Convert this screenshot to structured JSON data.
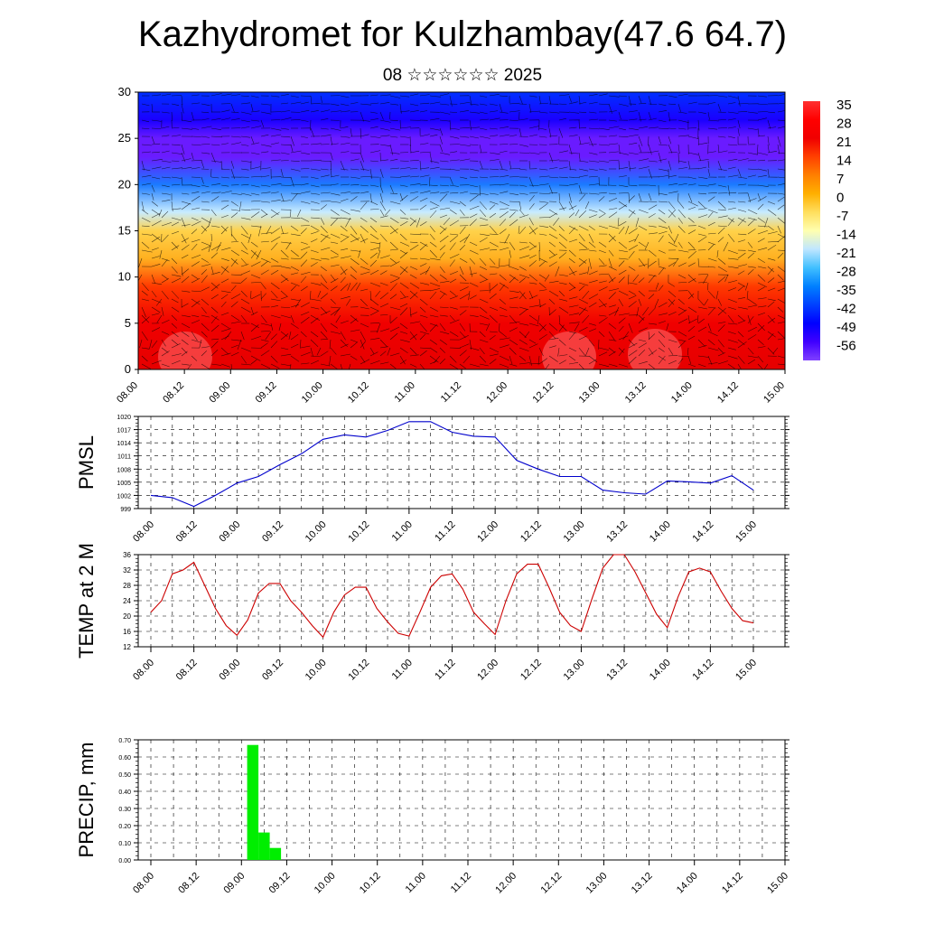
{
  "title": "Kazhydromet for Kulzhambay(47.6 64.7)",
  "subtitle": "08 ☆☆☆☆☆☆ 2025",
  "time_labels": [
    "08.00",
    "08.12",
    "09.00",
    "09.12",
    "10.00",
    "10.12",
    "11.00",
    "11.12",
    "12.00",
    "12.12",
    "13.00",
    "13.12",
    "14.00",
    "14.12",
    "15.00"
  ],
  "chart_data": [
    {
      "type": "heatmap",
      "yticks": [
        0,
        5,
        10,
        15,
        20,
        25,
        30
      ],
      "ylim": [
        0,
        30
      ],
      "colorbar": {
        "labels": [
          "35",
          "28",
          "21",
          "14",
          "7",
          "0",
          "-7",
          "-14",
          "-21",
          "-28",
          "-35",
          "-42",
          "-49",
          "-56"
        ],
        "colors": [
          "#ff3030",
          "#ff0000",
          "#f00000",
          "#ff4000",
          "#ff8000",
          "#ffb000",
          "#ffdf5f",
          "#ffffb0",
          "#bfe6ff",
          "#40bfff",
          "#0080ff",
          "#0040ff",
          "#0000ff",
          "#4000ff",
          "#8040ff"
        ]
      },
      "layers_temperature": [
        {
          "height": 0,
          "value": 32
        },
        {
          "height": 5,
          "value": 26
        },
        {
          "height": 9,
          "value": 14
        },
        {
          "height": 12,
          "value": 0
        },
        {
          "height": 15,
          "value": -10
        },
        {
          "height": 17,
          "value": -25
        },
        {
          "height": 20,
          "value": -42
        },
        {
          "height": 23,
          "value": -56
        },
        {
          "height": 25,
          "value": -60
        },
        {
          "height": 27,
          "value": -54
        },
        {
          "height": 30,
          "value": -46
        }
      ]
    },
    {
      "type": "line",
      "ylabel": "PMSL",
      "ylim": [
        999,
        1020
      ],
      "yticks": [
        999,
        1002,
        1005,
        1008,
        1011,
        1014,
        1017,
        1020
      ],
      "color": "#0000cc",
      "x": [
        0,
        0.5,
        1,
        1.5,
        2,
        2.5,
        3,
        3.5,
        4,
        4.5,
        5,
        5.5,
        6,
        6.5,
        7,
        7.5,
        8,
        8.5,
        9,
        9.5,
        10,
        10.5,
        11,
        11.5,
        12,
        12.5,
        13,
        13.5,
        14
      ],
      "values": [
        1002.0,
        1001.5,
        999.5,
        1002.0,
        1004.8,
        1006.3,
        1009.0,
        1011.5,
        1014.8,
        1015.8,
        1015.3,
        1016.8,
        1018.8,
        1018.8,
        1016.4,
        1015.5,
        1015.3,
        1010.0,
        1008.0,
        1006.3,
        1006.3,
        1003.2,
        1002.6,
        1002.3,
        1005.3,
        1005.1,
        1004.8,
        1006.5,
        1003.2
      ]
    },
    {
      "type": "line",
      "ylabel": "TEMP at 2 M",
      "ylim": [
        12,
        36
      ],
      "yticks": [
        12,
        16,
        20,
        24,
        28,
        32,
        36
      ],
      "color": "#cc0000",
      "x": [
        0,
        0.25,
        0.5,
        0.75,
        1,
        1.25,
        1.5,
        1.75,
        2,
        2.25,
        2.5,
        2.75,
        3,
        3.25,
        3.5,
        3.75,
        4,
        4.25,
        4.5,
        4.75,
        5,
        5.25,
        5.5,
        5.75,
        6,
        6.25,
        6.5,
        6.75,
        7,
        7.25,
        7.5,
        7.75,
        8,
        8.25,
        8.5,
        8.75,
        9,
        9.25,
        9.5,
        9.75,
        10,
        10.25,
        10.5,
        10.75,
        11,
        11.25,
        11.5,
        11.75,
        12,
        12.25,
        12.5,
        12.75,
        13,
        13.25,
        13.5,
        13.75,
        14
      ],
      "values": [
        21,
        24,
        31,
        32,
        34,
        28,
        22,
        17.5,
        15,
        19,
        26,
        28.5,
        28.5,
        24,
        21,
        17.5,
        14.5,
        21,
        25.5,
        27.5,
        27.5,
        22,
        18.5,
        15.5,
        14.8,
        21,
        27.5,
        30.5,
        31,
        27,
        21,
        18,
        15.2,
        24,
        31,
        33.5,
        33.5,
        27.5,
        21,
        17.5,
        16,
        24.5,
        32.5,
        36,
        36,
        31.5,
        26,
        20.5,
        17,
        25,
        31.5,
        32.5,
        31.5,
        26.5,
        22,
        18.8,
        18.2
      ]
    },
    {
      "type": "bar",
      "ylabel": "PRECIP, mm",
      "ylim": [
        0,
        0.7
      ],
      "yticks": [
        "0.00",
        "0.10",
        "0.20",
        "0.30",
        "0.40",
        "0.50",
        "0.60",
        "0.70"
      ],
      "color": "#00ee00",
      "bars": [
        {
          "x": 2.25,
          "value": 0.67
        },
        {
          "x": 2.5,
          "value": 0.16
        },
        {
          "x": 2.75,
          "value": 0.07
        }
      ]
    }
  ]
}
